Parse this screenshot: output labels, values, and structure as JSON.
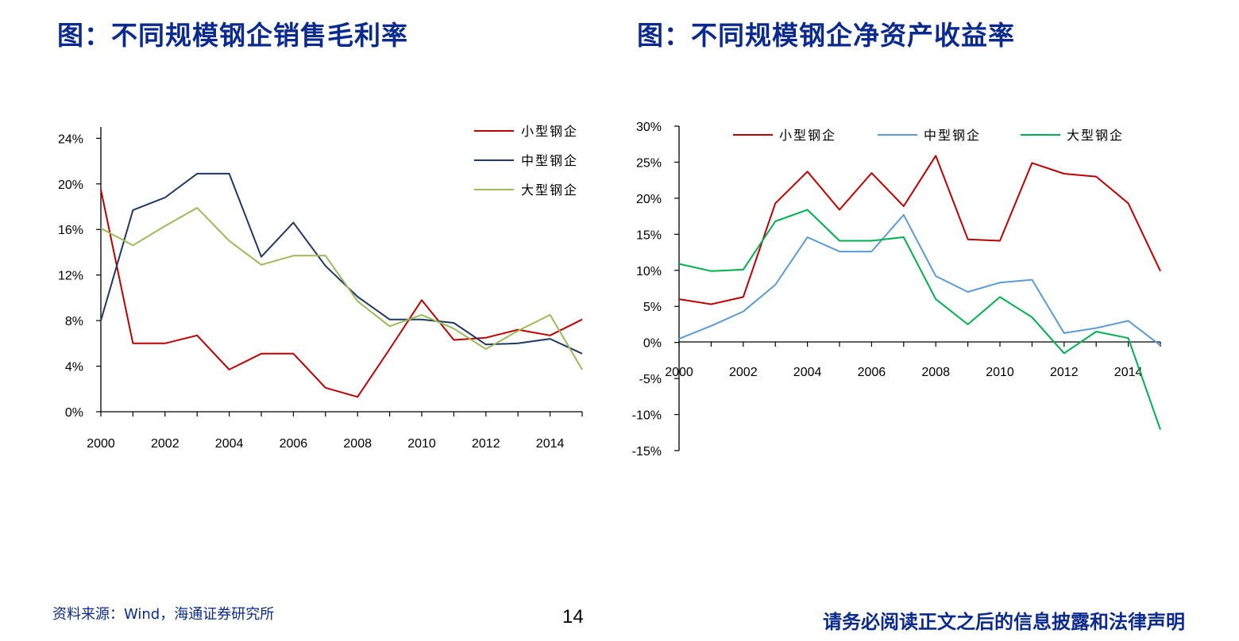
{
  "titles": {
    "left": "图：不同规模钢企销售毛利率",
    "right": "图：不同规模钢企净资产收益率"
  },
  "footer": {
    "source": "资料来源：Wind，海通证券研究所",
    "page": "14",
    "disclaimer": "请务必阅读正文之后的信息披露和法律声明"
  },
  "colors": {
    "small": "#c00000",
    "medium": "#1f3864",
    "large": "#9bbb59",
    "medium_right": "#5b9bd5",
    "large_right": "#00b050"
  },
  "chart_data": [
    {
      "type": "line",
      "title": "图：不同规模钢企销售毛利率",
      "x": [
        2000,
        2001,
        2002,
        2003,
        2004,
        2005,
        2006,
        2007,
        2008,
        2009,
        2010,
        2011,
        2012,
        2013,
        2014,
        2015
      ],
      "x_tick_labels": [
        "2000",
        "2002",
        "2004",
        "2006",
        "2008",
        "2010",
        "2012",
        "2014"
      ],
      "y_tick_labels": [
        "0%",
        "4%",
        "8%",
        "12%",
        "16%",
        "20%",
        "24%"
      ],
      "ylim": [
        0,
        0.25
      ],
      "legend_position": "top-right",
      "series": [
        {
          "name": "小型钢企",
          "color": "#c00000",
          "values": [
            0.195,
            0.06,
            0.06,
            0.067,
            0.037,
            0.051,
            0.051,
            0.021,
            0.013,
            0.055,
            0.098,
            0.063,
            0.065,
            0.072,
            0.067,
            0.081
          ]
        },
        {
          "name": "中型钢企",
          "color": "#1f3864",
          "values": [
            0.08,
            0.177,
            0.188,
            0.209,
            0.209,
            0.136,
            0.166,
            0.128,
            0.101,
            0.081,
            0.081,
            0.078,
            0.059,
            0.06,
            0.064,
            0.051
          ]
        },
        {
          "name": "大型钢企",
          "color": "#9bbb59",
          "values": [
            0.161,
            0.146,
            0.163,
            0.179,
            0.15,
            0.129,
            0.137,
            0.137,
            0.097,
            0.075,
            0.085,
            0.073,
            0.055,
            0.071,
            0.085,
            0.037
          ]
        }
      ]
    },
    {
      "type": "line",
      "title": "图：不同规模钢企净资产收益率",
      "x": [
        2000,
        2001,
        2002,
        2003,
        2004,
        2005,
        2006,
        2007,
        2008,
        2009,
        2010,
        2011,
        2012,
        2013,
        2014,
        2015
      ],
      "x_tick_labels": [
        "2000",
        "2002",
        "2004",
        "2006",
        "2008",
        "2010",
        "2012",
        "2014"
      ],
      "y_tick_labels": [
        "30%",
        "25%",
        "20%",
        "15%",
        "10%",
        "5%",
        "0%",
        "-5%",
        "-10%",
        "-15%"
      ],
      "ylim": [
        -0.15,
        0.3
      ],
      "legend_position": "top",
      "series": [
        {
          "name": "小型钢企",
          "color": "#c00000",
          "values": [
            0.06,
            0.053,
            0.063,
            0.193,
            0.237,
            0.184,
            0.235,
            0.189,
            0.259,
            0.143,
            0.141,
            0.249,
            0.234,
            0.23,
            0.193,
            0.099
          ]
        },
        {
          "name": "中型钢企",
          "color": "#5b9bd5",
          "values": [
            0.005,
            0.023,
            0.043,
            0.08,
            0.146,
            0.126,
            0.126,
            0.177,
            0.092,
            0.07,
            0.083,
            0.087,
            0.013,
            0.02,
            0.03,
            -0.004
          ]
        },
        {
          "name": "大型钢企",
          "color": "#00b050",
          "values": [
            0.109,
            0.099,
            0.101,
            0.168,
            0.184,
            0.141,
            0.141,
            0.146,
            0.06,
            0.025,
            0.063,
            0.035,
            -0.015,
            0.015,
            0.006,
            -0.121
          ]
        }
      ]
    }
  ]
}
